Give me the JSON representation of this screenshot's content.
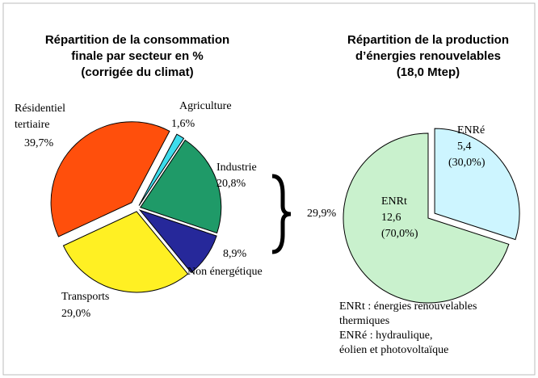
{
  "chart_data": [
    {
      "type": "pie",
      "title": [
        "Répartition de la consommation",
        "finale par secteur en %",
        "(corrigée du climat)"
      ],
      "categories": [
        [
          "Résidentiel",
          "tertiaire"
        ],
        [
          "Agriculture"
        ],
        [
          "Industrie"
        ],
        [
          "Non énergétique"
        ],
        [
          "Transports"
        ]
      ],
      "values": [
        39.7,
        1.6,
        20.8,
        8.9,
        29.0
      ],
      "value_labels": [
        "39,7%",
        "1,6%",
        "20,8%",
        "8,9%",
        "29,0%"
      ],
      "colors": [
        "#ff4f0c",
        "#3ddcec",
        "#1f9a68",
        "#26289a",
        "#fff023"
      ],
      "annotations": [
        "29,9%"
      ]
    },
    {
      "type": "pie",
      "title": [
        "Répartition de la production",
        "d’énergies renouvelables",
        "(18,0 Mtep)"
      ],
      "categories": [
        [
          "ENRé"
        ],
        [
          "ENRt"
        ]
      ],
      "values": [
        5.4,
        12.6
      ],
      "value_labels": [
        "5,4",
        "12,6"
      ],
      "percent_labels": [
        "(30,0%)",
        "(70,0%)"
      ],
      "colors": [
        "#cdf5ff",
        "#c9f1cd"
      ],
      "notes": [
        "ENRt : énergies renouvelables",
        "thermiques",
        "ENRé : hydraulique,",
        "éolien et photovoltaïque"
      ]
    }
  ]
}
